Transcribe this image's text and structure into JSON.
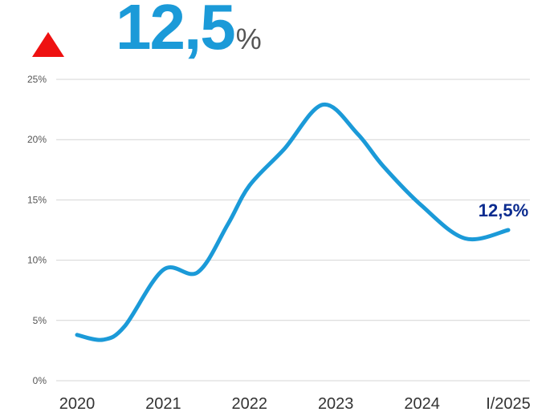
{
  "header": {
    "trend_icon": "up-triangle-icon",
    "trend_color": "#ee1111",
    "value": "12,5",
    "unit": "%"
  },
  "chart_data": {
    "type": "line",
    "title": "",
    "xlabel": "",
    "ylabel": "",
    "x_ticks": [
      "2020",
      "2021",
      "2022",
      "2023",
      "2024",
      "I/2025"
    ],
    "y_ticks": [
      "0%",
      "5%",
      "10%",
      "15%",
      "20%",
      "25%"
    ],
    "ylim": [
      0,
      25
    ],
    "grid": true,
    "line_color": "#1b9ad8",
    "end_label": "12,5%",
    "end_label_color": "#0b2b8f",
    "series": [
      {
        "x": [
          0,
          0.3,
          0.55,
          1.0,
          1.4,
          1.75,
          2.0,
          2.4,
          2.85,
          3.25,
          3.55,
          4.0,
          4.5,
          5.0
        ],
        "values": [
          3.8,
          3.4,
          4.5,
          9.2,
          9.0,
          13.0,
          16.2,
          19.2,
          22.9,
          20.5,
          17.8,
          14.5,
          11.8,
          12.5
        ]
      }
    ]
  }
}
